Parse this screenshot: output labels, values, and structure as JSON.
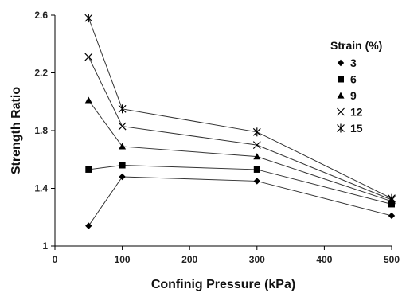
{
  "chart_data": {
    "type": "line",
    "xlabel": "Confinig Pressure (kPa)",
    "ylabel": "Strength Ratio",
    "xlim": [
      0,
      500
    ],
    "ylim": [
      1,
      2.6
    ],
    "xticks": [
      0,
      100,
      200,
      300,
      400,
      500
    ],
    "yticks": [
      1,
      1.4,
      1.8,
      2.2,
      2.6
    ],
    "ytick_labels": [
      "1",
      "1.4",
      "1.8",
      "2.2",
      "2.6"
    ],
    "x": [
      50,
      100,
      300,
      500
    ],
    "legend": {
      "title": "Strain (%)",
      "placement": "top-right"
    },
    "grid": false,
    "series": [
      {
        "name": "3",
        "marker": "diamond",
        "values": [
          1.14,
          1.48,
          1.45,
          1.21
        ]
      },
      {
        "name": "6",
        "marker": "square",
        "values": [
          1.53,
          1.56,
          1.53,
          1.29
        ]
      },
      {
        "name": "9",
        "marker": "triangle",
        "values": [
          2.01,
          1.69,
          1.62,
          1.31
        ]
      },
      {
        "name": "12",
        "marker": "x",
        "values": [
          2.31,
          1.83,
          1.7,
          1.32
        ]
      },
      {
        "name": "15",
        "marker": "star",
        "values": [
          2.58,
          1.95,
          1.79,
          1.33
        ]
      }
    ],
    "line_color": "#333333"
  }
}
